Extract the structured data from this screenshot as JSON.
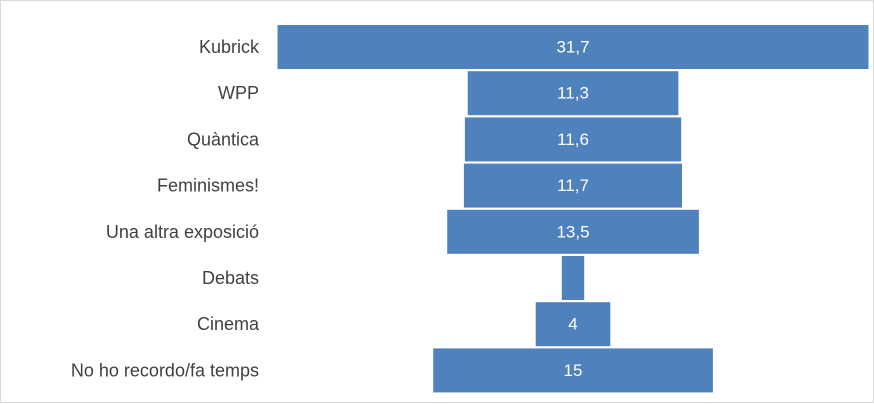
{
  "chart_data": {
    "type": "bar",
    "orientation": "horizontal",
    "layout": "centered (funnel)",
    "categories": [
      "Kubrick",
      "WPP",
      "Quàntica",
      "Feminismes!",
      "Una altra exposició",
      "Debats",
      "Cinema",
      "No ho recordo/fa temps"
    ],
    "values": [
      31.7,
      11.3,
      11.6,
      11.7,
      13.5,
      1.2,
      4,
      15
    ],
    "data_labels": [
      "31,7",
      "11,3",
      "11,6",
      "11,7",
      "13,5",
      "",
      "4",
      "15"
    ],
    "bar_color": "#4f81bd",
    "label_color": "#ffffff",
    "category_label_color": "#404040",
    "title": "",
    "xlabel": "",
    "ylabel": "",
    "grid": false,
    "legend": "none"
  }
}
